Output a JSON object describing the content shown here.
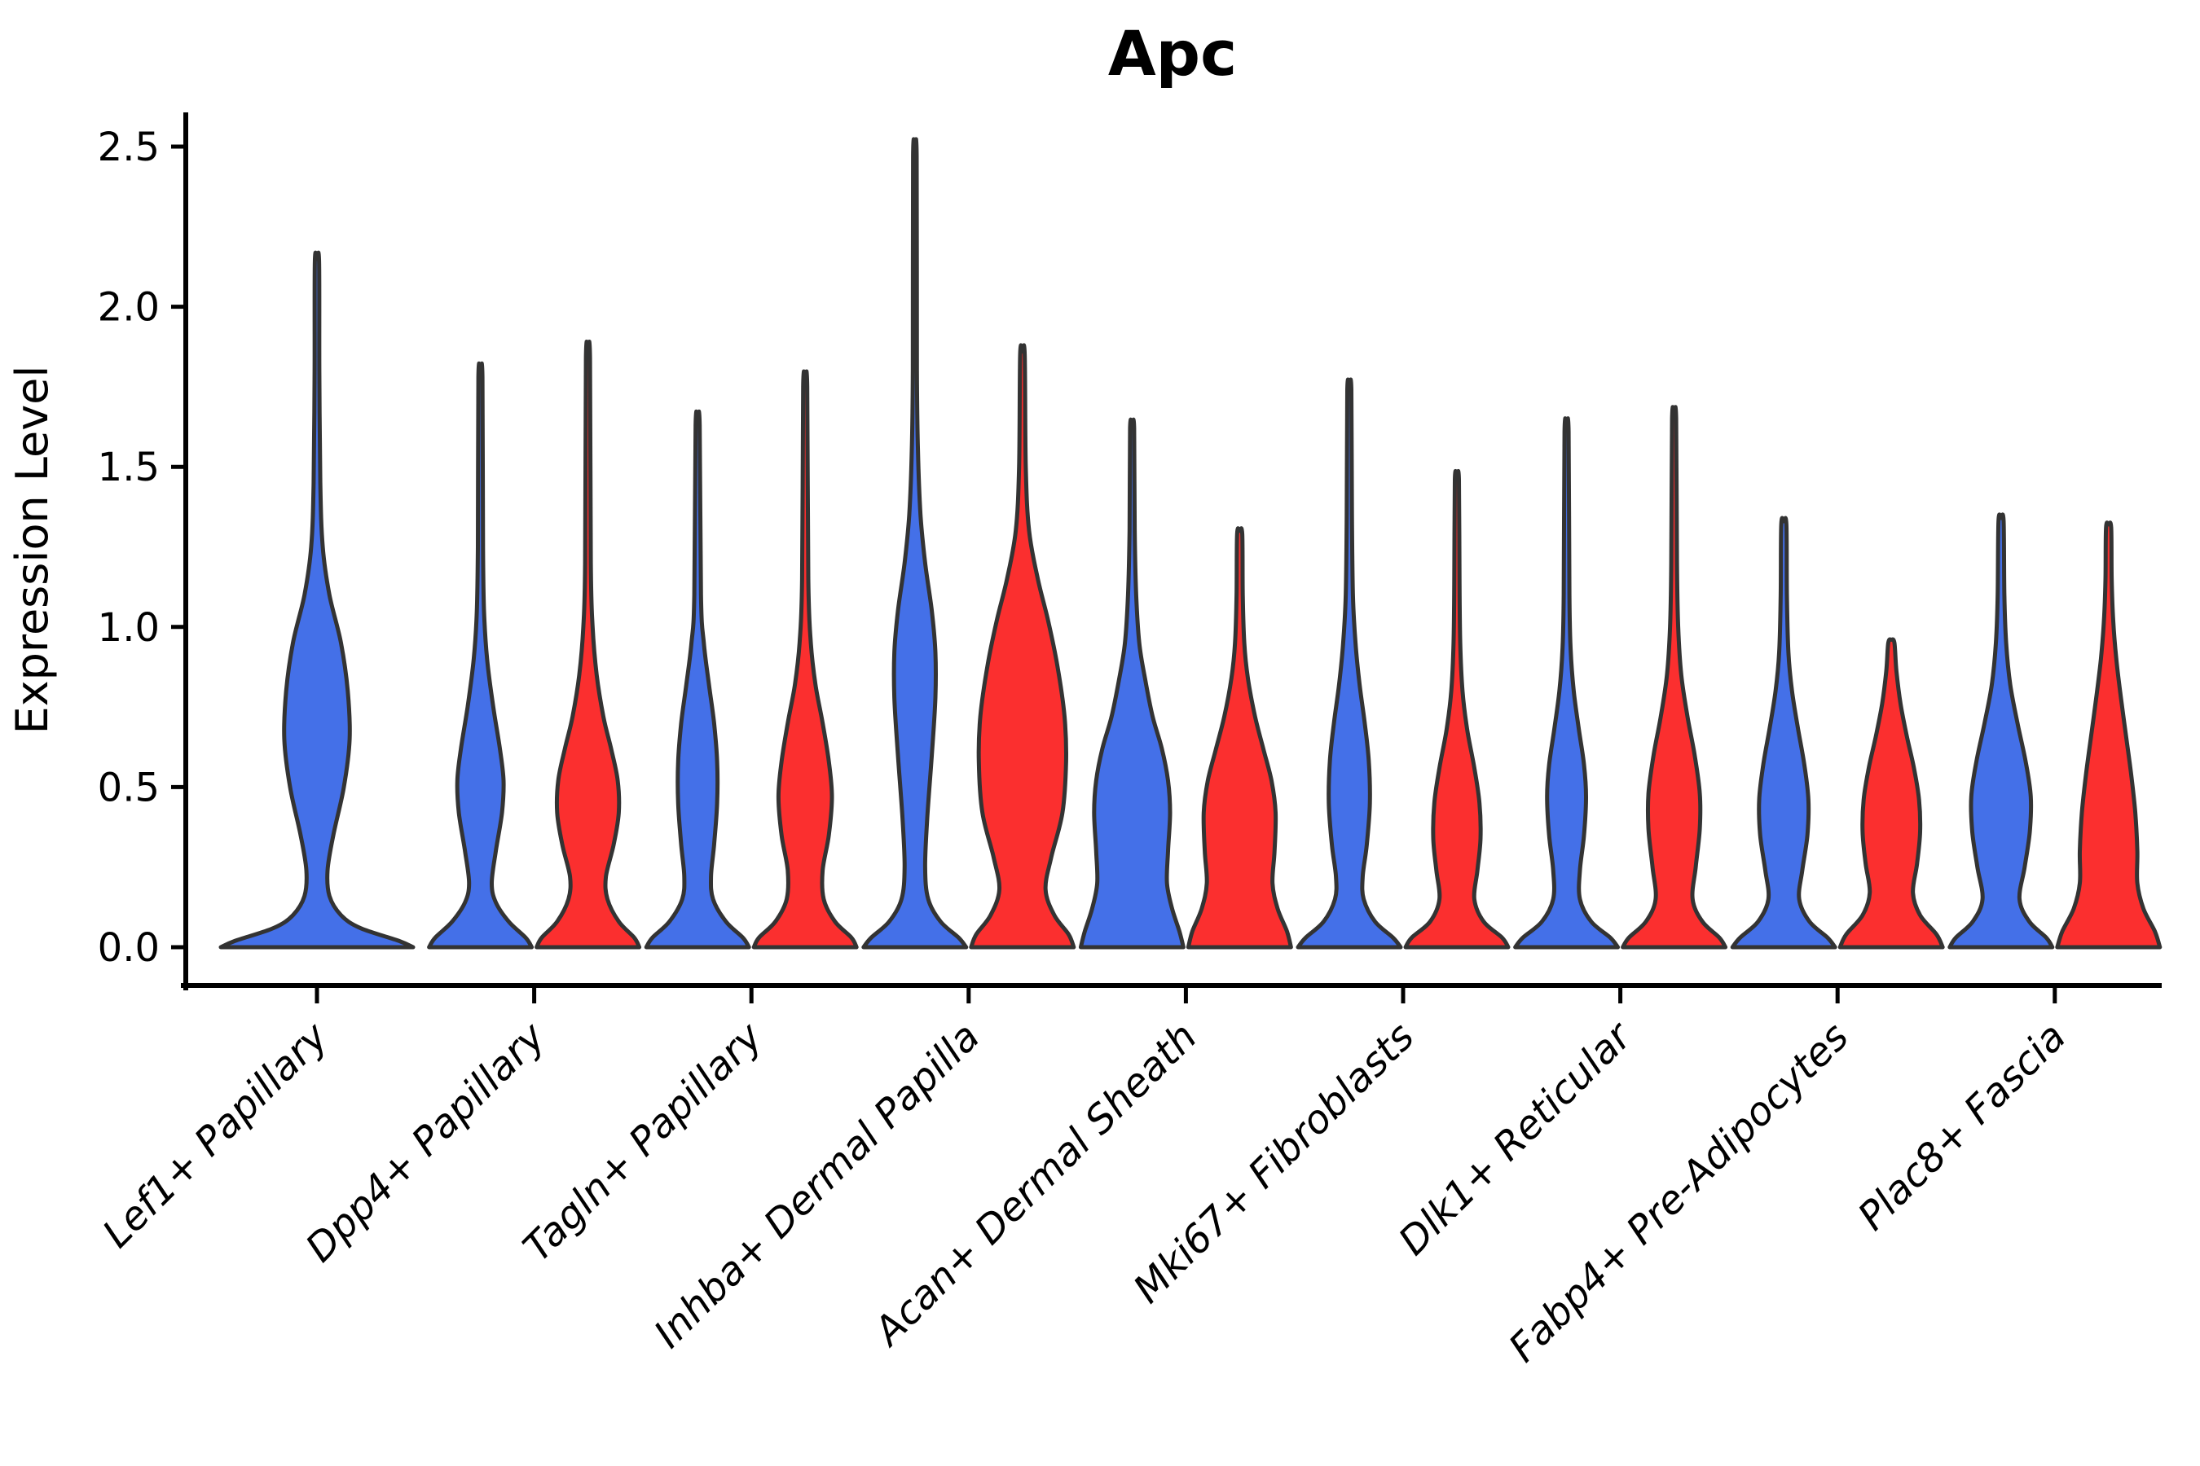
{
  "chart_data": {
    "type": "violin",
    "title": "Apc",
    "ylabel": "Expression Level",
    "ylim": [
      0,
      2.5
    ],
    "y_ticks": [
      0.0,
      0.5,
      1.0,
      1.5,
      2.0,
      2.5
    ],
    "y_tick_labels": [
      "0.0",
      "0.5",
      "1.0",
      "1.5",
      "2.0",
      "2.5"
    ],
    "grid": false,
    "legend": "none",
    "categories": [
      "Lef1+ Papillary",
      "Dpp4+ Papillary",
      "Tagln+ Papillary",
      "Inhba+ Dermal Papilla",
      "Acan+ Dermal Sheath",
      "Mki67+ Fibroblasts",
      "Dlk1+ Reticular",
      "Fabp4+ Pre-Adipocytes",
      "Plac8+ Fascia"
    ],
    "splits": [
      {
        "id": "blue",
        "color": "#4470E8"
      },
      {
        "id": "red",
        "color": "#FB2F2F"
      }
    ],
    "outline_color": "#333333",
    "violins": [
      {
        "category": "Lef1+ Papillary",
        "split": "blue",
        "tip_value": 2.14,
        "profile": [
          [
            0,
            1.0
          ],
          [
            0.02,
            0.85
          ],
          [
            0.06,
            0.45
          ],
          [
            0.1,
            0.25
          ],
          [
            0.16,
            0.13
          ],
          [
            0.24,
            0.11
          ],
          [
            0.35,
            0.17
          ],
          [
            0.5,
            0.28
          ],
          [
            0.65,
            0.34
          ],
          [
            0.8,
            0.32
          ],
          [
            0.95,
            0.25
          ],
          [
            1.1,
            0.13
          ],
          [
            1.25,
            0.06
          ],
          [
            1.45,
            0.035
          ],
          [
            1.8,
            0.025
          ],
          [
            2.14,
            0.022
          ]
        ]
      },
      {
        "category": "Dpp4+ Papillary",
        "split": "blue",
        "tip_value": 1.78,
        "profile": [
          [
            0,
            1.0
          ],
          [
            0.03,
            0.88
          ],
          [
            0.08,
            0.55
          ],
          [
            0.14,
            0.3
          ],
          [
            0.2,
            0.22
          ],
          [
            0.3,
            0.3
          ],
          [
            0.42,
            0.42
          ],
          [
            0.52,
            0.45
          ],
          [
            0.62,
            0.38
          ],
          [
            0.75,
            0.25
          ],
          [
            0.9,
            0.13
          ],
          [
            1.05,
            0.07
          ],
          [
            1.25,
            0.05
          ],
          [
            1.78,
            0.04
          ]
        ]
      },
      {
        "category": "Dpp4+ Papillary",
        "split": "red",
        "tip_value": 1.84,
        "profile": [
          [
            0,
            1.0
          ],
          [
            0.03,
            0.9
          ],
          [
            0.08,
            0.6
          ],
          [
            0.15,
            0.38
          ],
          [
            0.22,
            0.35
          ],
          [
            0.32,
            0.5
          ],
          [
            0.42,
            0.6
          ],
          [
            0.52,
            0.58
          ],
          [
            0.62,
            0.45
          ],
          [
            0.72,
            0.3
          ],
          [
            0.85,
            0.17
          ],
          [
            1.0,
            0.09
          ],
          [
            1.2,
            0.055
          ],
          [
            1.84,
            0.04
          ]
        ]
      },
      {
        "category": "Tagln+ Papillary",
        "split": "blue",
        "tip_value": 1.63,
        "profile": [
          [
            0,
            1.0
          ],
          [
            0.03,
            0.88
          ],
          [
            0.08,
            0.55
          ],
          [
            0.15,
            0.3
          ],
          [
            0.22,
            0.26
          ],
          [
            0.32,
            0.32
          ],
          [
            0.45,
            0.38
          ],
          [
            0.58,
            0.38
          ],
          [
            0.7,
            0.32
          ],
          [
            0.82,
            0.22
          ],
          [
            0.95,
            0.12
          ],
          [
            1.1,
            0.065
          ],
          [
            1.63,
            0.04
          ]
        ]
      },
      {
        "category": "Tagln+ Papillary",
        "split": "red",
        "tip_value": 1.75,
        "profile": [
          [
            0,
            1.0
          ],
          [
            0.03,
            0.9
          ],
          [
            0.08,
            0.58
          ],
          [
            0.15,
            0.36
          ],
          [
            0.24,
            0.34
          ],
          [
            0.35,
            0.46
          ],
          [
            0.47,
            0.52
          ],
          [
            0.58,
            0.46
          ],
          [
            0.7,
            0.34
          ],
          [
            0.82,
            0.2
          ],
          [
            0.95,
            0.11
          ],
          [
            1.15,
            0.06
          ],
          [
            1.75,
            0.04
          ]
        ]
      },
      {
        "category": "Inhba+ Dermal Papilla",
        "split": "blue",
        "tip_value": 2.47,
        "profile": [
          [
            0,
            1.0
          ],
          [
            0.03,
            0.85
          ],
          [
            0.08,
            0.5
          ],
          [
            0.15,
            0.26
          ],
          [
            0.25,
            0.2
          ],
          [
            0.4,
            0.24
          ],
          [
            0.6,
            0.33
          ],
          [
            0.78,
            0.4
          ],
          [
            0.92,
            0.4
          ],
          [
            1.05,
            0.33
          ],
          [
            1.2,
            0.2
          ],
          [
            1.35,
            0.11
          ],
          [
            1.55,
            0.06
          ],
          [
            1.8,
            0.04
          ],
          [
            2.47,
            0.035
          ]
        ]
      },
      {
        "category": "Inhba+ Dermal Papilla",
        "split": "red",
        "tip_value": 1.85,
        "profile": [
          [
            0,
            1.0
          ],
          [
            0.04,
            0.9
          ],
          [
            0.1,
            0.62
          ],
          [
            0.18,
            0.45
          ],
          [
            0.28,
            0.56
          ],
          [
            0.42,
            0.78
          ],
          [
            0.58,
            0.85
          ],
          [
            0.72,
            0.82
          ],
          [
            0.88,
            0.68
          ],
          [
            1.02,
            0.5
          ],
          [
            1.15,
            0.3
          ],
          [
            1.3,
            0.13
          ],
          [
            1.5,
            0.065
          ],
          [
            1.85,
            0.045
          ]
        ]
      },
      {
        "category": "Acan+ Dermal Sheath",
        "split": "blue",
        "tip_value": 1.62,
        "profile": [
          [
            0,
            1.0
          ],
          [
            0.05,
            0.92
          ],
          [
            0.12,
            0.78
          ],
          [
            0.2,
            0.68
          ],
          [
            0.3,
            0.7
          ],
          [
            0.42,
            0.74
          ],
          [
            0.52,
            0.7
          ],
          [
            0.62,
            0.58
          ],
          [
            0.72,
            0.4
          ],
          [
            0.84,
            0.25
          ],
          [
            0.95,
            0.14
          ],
          [
            1.1,
            0.08
          ],
          [
            1.3,
            0.05
          ],
          [
            1.62,
            0.04
          ]
        ]
      },
      {
        "category": "Acan+ Dermal Sheath",
        "split": "red",
        "tip_value": 1.29,
        "profile": [
          [
            0,
            1.0
          ],
          [
            0.05,
            0.92
          ],
          [
            0.12,
            0.74
          ],
          [
            0.2,
            0.64
          ],
          [
            0.3,
            0.68
          ],
          [
            0.42,
            0.7
          ],
          [
            0.52,
            0.62
          ],
          [
            0.62,
            0.46
          ],
          [
            0.72,
            0.3
          ],
          [
            0.84,
            0.16
          ],
          [
            0.95,
            0.09
          ],
          [
            1.1,
            0.06
          ],
          [
            1.29,
            0.05
          ]
        ]
      },
      {
        "category": "Mki67+ Fibroblasts",
        "split": "blue",
        "tip_value": 1.74,
        "profile": [
          [
            0,
            1.0
          ],
          [
            0.03,
            0.85
          ],
          [
            0.08,
            0.5
          ],
          [
            0.15,
            0.28
          ],
          [
            0.22,
            0.26
          ],
          [
            0.32,
            0.34
          ],
          [
            0.45,
            0.4
          ],
          [
            0.58,
            0.38
          ],
          [
            0.7,
            0.3
          ],
          [
            0.82,
            0.2
          ],
          [
            0.95,
            0.12
          ],
          [
            1.1,
            0.07
          ],
          [
            1.35,
            0.05
          ],
          [
            1.74,
            0.04
          ]
        ]
      },
      {
        "category": "Mki67+ Fibroblasts",
        "split": "red",
        "tip_value": 1.46,
        "profile": [
          [
            0,
            1.0
          ],
          [
            0.03,
            0.88
          ],
          [
            0.08,
            0.52
          ],
          [
            0.15,
            0.34
          ],
          [
            0.24,
            0.4
          ],
          [
            0.34,
            0.46
          ],
          [
            0.45,
            0.44
          ],
          [
            0.56,
            0.34
          ],
          [
            0.68,
            0.2
          ],
          [
            0.8,
            0.11
          ],
          [
            0.95,
            0.065
          ],
          [
            1.15,
            0.05
          ],
          [
            1.46,
            0.04
          ]
        ]
      },
      {
        "category": "Dlk1+ Reticular",
        "split": "blue",
        "tip_value": 1.61,
        "profile": [
          [
            0,
            1.0
          ],
          [
            0.03,
            0.85
          ],
          [
            0.08,
            0.48
          ],
          [
            0.15,
            0.26
          ],
          [
            0.24,
            0.26
          ],
          [
            0.35,
            0.34
          ],
          [
            0.47,
            0.38
          ],
          [
            0.57,
            0.34
          ],
          [
            0.68,
            0.24
          ],
          [
            0.8,
            0.14
          ],
          [
            0.93,
            0.08
          ],
          [
            1.1,
            0.055
          ],
          [
            1.61,
            0.04
          ]
        ]
      },
      {
        "category": "Dlk1+ Reticular",
        "split": "red",
        "tip_value": 1.65,
        "profile": [
          [
            0,
            1.0
          ],
          [
            0.03,
            0.88
          ],
          [
            0.08,
            0.55
          ],
          [
            0.15,
            0.36
          ],
          [
            0.25,
            0.42
          ],
          [
            0.37,
            0.5
          ],
          [
            0.48,
            0.5
          ],
          [
            0.6,
            0.4
          ],
          [
            0.72,
            0.26
          ],
          [
            0.85,
            0.14
          ],
          [
            1.0,
            0.08
          ],
          [
            1.2,
            0.055
          ],
          [
            1.65,
            0.04
          ]
        ]
      },
      {
        "category": "Fabp4+ Pre-Adipocytes",
        "split": "blue",
        "tip_value": 1.32,
        "profile": [
          [
            0,
            1.0
          ],
          [
            0.03,
            0.85
          ],
          [
            0.08,
            0.5
          ],
          [
            0.15,
            0.3
          ],
          [
            0.24,
            0.36
          ],
          [
            0.35,
            0.46
          ],
          [
            0.46,
            0.48
          ],
          [
            0.57,
            0.4
          ],
          [
            0.68,
            0.28
          ],
          [
            0.8,
            0.16
          ],
          [
            0.92,
            0.09
          ],
          [
            1.1,
            0.06
          ],
          [
            1.32,
            0.05
          ]
        ]
      },
      {
        "category": "Fabp4+ Pre-Adipocytes",
        "split": "red",
        "tip_value": 0.95,
        "profile": [
          [
            0,
            1.0
          ],
          [
            0.04,
            0.88
          ],
          [
            0.1,
            0.56
          ],
          [
            0.17,
            0.42
          ],
          [
            0.26,
            0.5
          ],
          [
            0.36,
            0.56
          ],
          [
            0.46,
            0.54
          ],
          [
            0.56,
            0.44
          ],
          [
            0.66,
            0.3
          ],
          [
            0.76,
            0.18
          ],
          [
            0.86,
            0.1
          ],
          [
            0.95,
            0.06
          ]
        ]
      },
      {
        "category": "Plac8+ Fascia",
        "split": "blue",
        "tip_value": 1.33,
        "profile": [
          [
            0,
            1.0
          ],
          [
            0.03,
            0.88
          ],
          [
            0.08,
            0.55
          ],
          [
            0.15,
            0.36
          ],
          [
            0.25,
            0.46
          ],
          [
            0.36,
            0.56
          ],
          [
            0.47,
            0.58
          ],
          [
            0.58,
            0.48
          ],
          [
            0.7,
            0.32
          ],
          [
            0.82,
            0.18
          ],
          [
            0.95,
            0.1
          ],
          [
            1.1,
            0.065
          ],
          [
            1.33,
            0.05
          ]
        ]
      },
      {
        "category": "Plac8+ Fascia",
        "split": "red",
        "tip_value": 1.31,
        "profile": [
          [
            0,
            1.0
          ],
          [
            0.05,
            0.9
          ],
          [
            0.12,
            0.68
          ],
          [
            0.2,
            0.56
          ],
          [
            0.3,
            0.56
          ],
          [
            0.42,
            0.52
          ],
          [
            0.54,
            0.44
          ],
          [
            0.66,
            0.34
          ],
          [
            0.78,
            0.24
          ],
          [
            0.9,
            0.15
          ],
          [
            1.02,
            0.09
          ],
          [
            1.15,
            0.06
          ],
          [
            1.31,
            0.05
          ]
        ]
      }
    ]
  }
}
